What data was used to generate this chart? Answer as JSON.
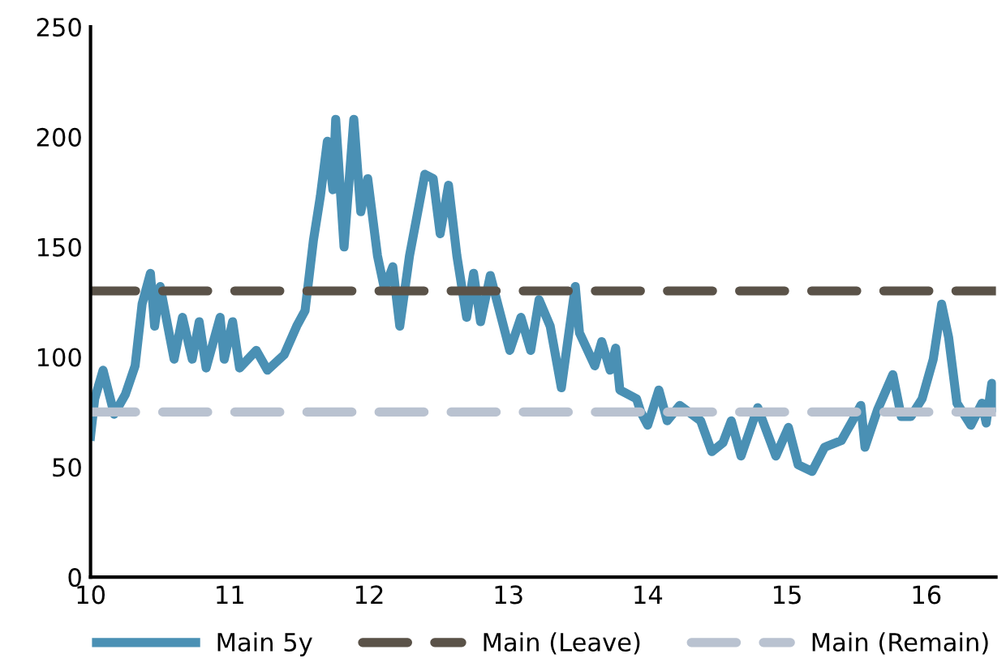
{
  "chart_data": {
    "type": "line",
    "xlim": [
      10,
      16.5
    ],
    "ylim": [
      0,
      250
    ],
    "xticks": [
      10,
      11,
      12,
      13,
      14,
      15,
      16
    ],
    "yticks": [
      0,
      50,
      100,
      150,
      200,
      250
    ],
    "grid": false,
    "legend": "bottom",
    "marker": "none",
    "series": [
      {
        "name": "Main 5y",
        "color": "#4a90b4",
        "line_style": "solid",
        "x": [
          10.0,
          10.03,
          10.09,
          10.17,
          10.25,
          10.32,
          10.37,
          10.43,
          10.46,
          10.5,
          10.6,
          10.66,
          10.73,
          10.78,
          10.83,
          10.93,
          10.96,
          11.02,
          11.07,
          11.19,
          11.27,
          11.39,
          11.48,
          11.54,
          11.6,
          11.65,
          11.7,
          11.74,
          11.76,
          11.82,
          11.89,
          11.94,
          11.99,
          12.06,
          12.11,
          12.17,
          12.22,
          12.29,
          12.4,
          12.46,
          12.51,
          12.57,
          12.63,
          12.7,
          12.75,
          12.8,
          12.87,
          13.01,
          13.09,
          13.16,
          13.22,
          13.3,
          13.38,
          13.48,
          13.51,
          13.62,
          13.67,
          13.73,
          13.77,
          13.8,
          13.92,
          13.95,
          14.0,
          14.08,
          14.14,
          14.23,
          14.38,
          14.46,
          14.54,
          14.6,
          14.67,
          14.79,
          14.92,
          15.01,
          15.08,
          15.18,
          15.27,
          15.39,
          15.47,
          15.53,
          15.56,
          15.65,
          15.76,
          15.82,
          15.89,
          15.97,
          16.05,
          16.11,
          16.16,
          16.22,
          16.32,
          16.4,
          16.43,
          16.47,
          16.5
        ],
        "values": [
          64,
          81,
          94,
          74,
          83,
          96,
          124,
          138,
          114,
          132,
          99,
          118,
          99,
          116,
          95,
          118,
          99,
          116,
          95,
          103,
          94,
          101,
          114,
          121,
          153,
          173,
          198,
          176,
          208,
          150,
          208,
          166,
          181,
          146,
          131,
          141,
          114,
          146,
          183,
          181,
          156,
          178,
          146,
          118,
          138,
          116,
          137,
          103,
          118,
          103,
          126,
          114,
          86,
          132,
          111,
          96,
          107,
          94,
          104,
          85,
          81,
          75,
          69,
          85,
          71,
          78,
          71,
          57,
          61,
          71,
          55,
          77,
          55,
          68,
          51,
          48,
          59,
          62,
          71,
          78,
          59,
          76,
          92,
          73,
          73,
          81,
          99,
          124,
          109,
          79,
          69,
          79,
          70,
          88,
          77
        ]
      },
      {
        "name": "Main (Leave)",
        "color": "#5a5248",
        "line_style": "dashed",
        "x": [
          10,
          16.5
        ],
        "values": [
          130,
          130
        ]
      },
      {
        "name": "Main (Remain)",
        "color": "#b9c2d0",
        "line_style": "dashed",
        "x": [
          10,
          16.5
        ],
        "values": [
          75,
          75
        ]
      }
    ]
  }
}
